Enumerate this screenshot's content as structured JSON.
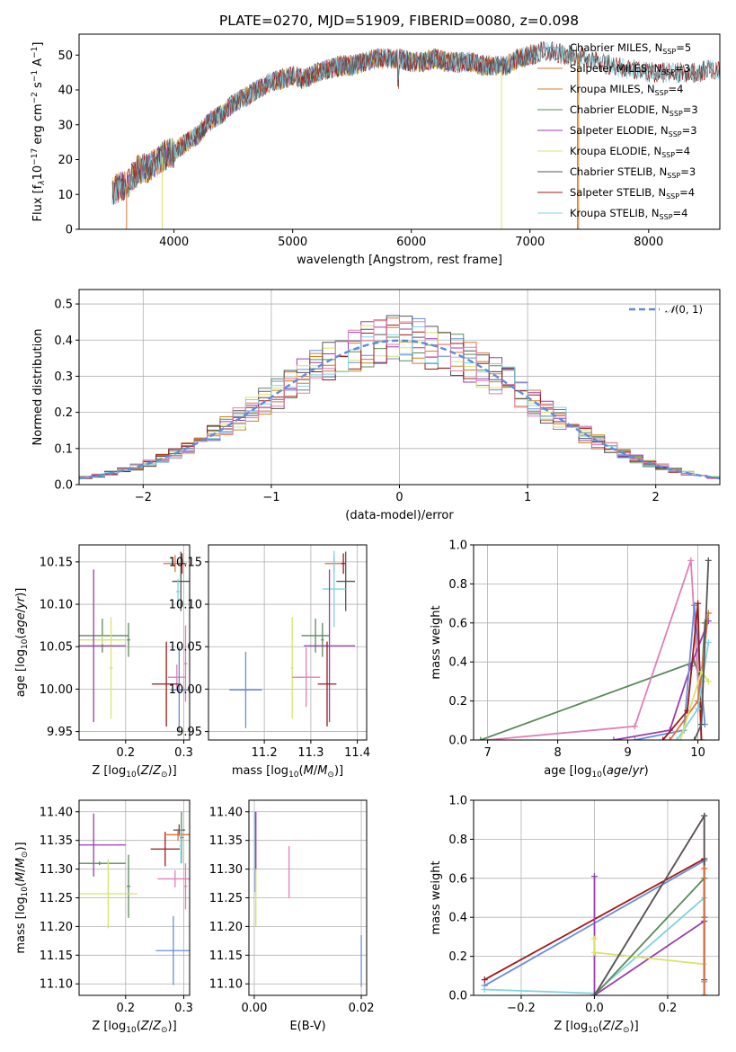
{
  "figure": {
    "title": "PLATE=0270, MJD=51909, FIBERID=0080, z=0.098"
  },
  "colors": {
    "chabrier_miles": "#6a8ed6",
    "salpeter_miles": "#e2703a",
    "kroupa_miles": "#c7851e",
    "chabrier_elodie": "#5a8a5a",
    "salpeter_elodie": "#9a3cb0",
    "kroupa_elodie": "#d9e36a",
    "chabrier_stelib": "#555555",
    "salpeter_stelib": "#a01818",
    "kroupa_stelib": "#7fd3e0",
    "pink": "#e17fb8",
    "gauss": "#5f8dd3"
  },
  "chart_data": [
    {
      "id": "spectrum",
      "type": "line",
      "xlabel": "wavelength [Angstrom, rest frame]",
      "ylabel": "Flux [f",
      "xlim": [
        3200,
        8600
      ],
      "ylim": [
        0,
        56
      ],
      "xticks": [
        4000,
        5000,
        6000,
        7000,
        8000
      ],
      "yticks": [
        0,
        10,
        20,
        30,
        40,
        50
      ],
      "grid": false,
      "legend": [
        {
          "label": "Chabrier MILES, N",
          "n": 5,
          "color": "#6a8ed6"
        },
        {
          "label": "Salpeter MILES, N",
          "n": 3,
          "color": "#e2703a"
        },
        {
          "label": "Kroupa MILES, N",
          "n": 4,
          "color": "#c7851e"
        },
        {
          "label": "Chabrier ELODIE, N",
          "n": 3,
          "color": "#5a8a5a"
        },
        {
          "label": "Salpeter ELODIE, N",
          "n": 3,
          "color": "#9a3cb0"
        },
        {
          "label": "Kroupa ELODIE, N",
          "n": 4,
          "color": "#d9e36a"
        },
        {
          "label": "Chabrier STELIB, N",
          "n": 3,
          "color": "#555555"
        },
        {
          "label": "Salpeter STELIB, N",
          "n": 4,
          "color": "#a01818"
        },
        {
          "label": "Kroupa STELIB, N",
          "n": 4,
          "color": "#7fd3e0"
        }
      ],
      "legend_sub": "SSP",
      "envelope": {
        "x": [
          3480,
          3600,
          3700,
          3800,
          3950,
          4000,
          4100,
          4200,
          4300,
          4400,
          4500,
          4600,
          4700,
          4800,
          4900,
          5000,
          5100,
          5200,
          5300,
          5400,
          5500,
          5600,
          5700,
          5800,
          5900,
          6000,
          6100,
          6200,
          6300,
          6400,
          6500,
          6600,
          6700,
          6800,
          6900,
          7000,
          7100,
          7200,
          7300,
          7400,
          7500,
          7600,
          7700,
          7800,
          7900,
          8000,
          8100,
          8200,
          8300,
          8400,
          8500,
          8600
        ],
        "y": [
          11,
          13,
          17,
          18,
          22,
          22,
          25,
          27,
          31,
          33,
          36,
          38,
          40,
          42,
          43,
          44,
          43,
          45,
          46,
          47,
          47,
          48,
          49,
          49,
          49,
          48,
          48,
          49,
          48,
          48,
          48,
          47,
          47,
          47,
          49,
          50,
          51,
          51,
          50,
          50,
          49,
          48,
          47,
          46,
          46,
          45,
          45,
          45,
          45,
          45,
          46,
          46
        ]
      },
      "lines_x": [
        3900,
        5890,
        6760,
        7400
      ]
    },
    {
      "id": "residuals",
      "type": "line",
      "xlabel": "(data-model)/error",
      "ylabel": "Normed distribution",
      "xlim": [
        -2.5,
        2.5
      ],
      "ylim": [
        0,
        0.54
      ],
      "xticks": [
        -2,
        -1,
        0,
        1,
        2
      ],
      "yticks": [
        0.0,
        0.1,
        0.2,
        0.3,
        0.4,
        0.5
      ],
      "grid": true,
      "legend": [
        {
          "label": "(0, 1)",
          "color": "#5f8dd3"
        }
      ],
      "histogram_bins": {
        "start": -2.5,
        "width": 0.1,
        "count": 50
      }
    },
    {
      "id": "age_vs_Z",
      "type": "scatter",
      "xlabel": "Z [log",
      "ylabel": "age  [log",
      "xlim": [
        0.12,
        0.31
      ],
      "ylim": [
        9.94,
        10.17
      ],
      "xticks": [
        0.2,
        0.3
      ],
      "yticks": [
        9.95,
        10.0,
        10.05,
        10.1,
        10.15
      ],
      "grid": true,
      "points": [
        {
          "x": 0.285,
          "y": 10.148,
          "xerr": 0.02,
          "yerr": 0.01,
          "color": "#e2703a"
        },
        {
          "x": 0.297,
          "y": 10.148,
          "xerr": 0.005,
          "yerr": 0.012,
          "color": "#a01818"
        },
        {
          "x": 0.295,
          "y": 10.127,
          "xerr": 0.015,
          "yerr": 0.035,
          "color": "#555555"
        },
        {
          "x": 0.29,
          "y": 10.115,
          "xerr": 0.003,
          "yerr": 0.015,
          "color": "#7fd3e0"
        },
        {
          "x": 0.16,
          "y": 10.063,
          "xerr": 0.045,
          "yerr": 0.02,
          "color": "#5a8a5a"
        },
        {
          "x": 0.205,
          "y": 10.058,
          "xerr": 0.003,
          "yerr": 0.02,
          "color": "#5a8a5a"
        },
        {
          "x": 0.16,
          "y": 10.058,
          "xerr": 0.04,
          "yerr": 0.005,
          "color": "#d9e36a"
        },
        {
          "x": 0.175,
          "y": 10.025,
          "xerr": 0.003,
          "yerr": 0.06,
          "color": "#d9e36a"
        },
        {
          "x": 0.145,
          "y": 10.051,
          "xerr": 0.055,
          "yerr": 0.09,
          "color": "#9a3cb0"
        },
        {
          "x": 0.288,
          "y": 10.014,
          "xerr": 0.015,
          "yerr": 0.015,
          "color": "#e17fb8"
        },
        {
          "x": 0.303,
          "y": 10.03,
          "xerr": 0.003,
          "yerr": 0.045,
          "color": "#e17fb8"
        },
        {
          "x": 0.27,
          "y": 10.006,
          "xerr": 0.025,
          "yerr": 0.05,
          "color": "#a01818"
        },
        {
          "x": 0.292,
          "y": 9.999,
          "xerr": 0.015,
          "yerr": 0.05,
          "color": "#6a8ed6"
        }
      ]
    },
    {
      "id": "age_vs_mass",
      "type": "scatter",
      "xlabel": "mass [log",
      "ylabel": "",
      "xlim": [
        11.08,
        11.42
      ],
      "ylim": [
        9.94,
        10.17
      ],
      "xticks": [
        11.2,
        11.3,
        11.4
      ],
      "yticks": [
        9.95,
        10.0,
        10.05,
        10.1,
        10.15
      ],
      "grid": true,
      "points": [
        {
          "x": 11.35,
          "y": 10.148,
          "xerr": 0.02,
          "yerr": 0.01,
          "color": "#e2703a"
        },
        {
          "x": 11.37,
          "y": 10.148,
          "xerr": 0.005,
          "yerr": 0.012,
          "color": "#a01818"
        },
        {
          "x": 11.375,
          "y": 10.127,
          "xerr": 0.02,
          "yerr": 0.035,
          "color": "#555555"
        },
        {
          "x": 11.35,
          "y": 10.118,
          "xerr": 0.025,
          "yerr": 0.045,
          "color": "#7fd3e0"
        },
        {
          "x": 11.31,
          "y": 10.063,
          "xerr": 0.03,
          "yerr": 0.02,
          "color": "#5a8a5a"
        },
        {
          "x": 11.325,
          "y": 10.058,
          "xerr": 0.003,
          "yerr": 0.02,
          "color": "#5a8a5a"
        },
        {
          "x": 11.26,
          "y": 10.025,
          "xerr": 0.003,
          "yerr": 0.06,
          "color": "#d9e36a"
        },
        {
          "x": 11.34,
          "y": 10.051,
          "xerr": 0.055,
          "yerr": 0.09,
          "color": "#9a3cb0"
        },
        {
          "x": 11.29,
          "y": 10.014,
          "xerr": 0.03,
          "yerr": 0.035,
          "color": "#e17fb8"
        },
        {
          "x": 11.335,
          "y": 10.006,
          "xerr": 0.02,
          "yerr": 0.05,
          "color": "#a01818"
        },
        {
          "x": 11.16,
          "y": 9.999,
          "xerr": 0.035,
          "yerr": 0.045,
          "color": "#6a8ed6"
        }
      ]
    },
    {
      "id": "massweight_vs_age",
      "type": "line",
      "xlabel": "age  [log",
      "ylabel": "mass weight",
      "xlim": [
        6.8,
        10.3
      ],
      "ylim": [
        0,
        1
      ],
      "xticks": [
        7,
        8,
        9,
        10
      ],
      "yticks": [
        0.0,
        0.2,
        0.4,
        0.6,
        0.8,
        1.0
      ],
      "grid": true,
      "series": [
        {
          "color": "#5a8a5a",
          "x": [
            6.9,
            9.95,
            10.05,
            10.1
          ],
          "y": [
            0.0,
            0.4,
            0.3,
            0.6
          ]
        },
        {
          "color": "#e17fb8",
          "x": [
            7.0,
            9.1,
            9.9,
            10.05
          ],
          "y": [
            0.0,
            0.07,
            0.92,
            0.0
          ]
        },
        {
          "color": "#9a3cb0",
          "x": [
            8.8,
            9.6,
            9.9,
            10.15
          ],
          "y": [
            0.0,
            0.05,
            0.38,
            0.61
          ]
        },
        {
          "color": "#6a8ed6",
          "x": [
            9.1,
            9.8,
            9.95,
            10.1
          ],
          "y": [
            0.0,
            0.05,
            0.69,
            0.08
          ]
        },
        {
          "color": "#a01818",
          "x": [
            9.5,
            9.85,
            10.0,
            10.05
          ],
          "y": [
            0.0,
            0.15,
            0.7,
            0.0
          ]
        },
        {
          "color": "#e2703a",
          "x": [
            9.6,
            10.0,
            10.15
          ],
          "y": [
            0.0,
            0.2,
            0.65
          ]
        },
        {
          "color": "#7fd3e0",
          "x": [
            9.7,
            10.0,
            10.15
          ],
          "y": [
            0.0,
            0.16,
            0.5
          ]
        },
        {
          "color": "#d9e36a",
          "x": [
            9.75,
            10.05,
            10.15
          ],
          "y": [
            0.0,
            0.35,
            0.3
          ]
        },
        {
          "color": "#555555",
          "x": [
            9.95,
            10.05,
            10.15
          ],
          "y": [
            0.0,
            0.08,
            0.92
          ]
        }
      ]
    },
    {
      "id": "mass_vs_Z",
      "type": "scatter",
      "xlabel": "Z [log",
      "ylabel": "mass [log",
      "xlim": [
        0.12,
        0.31
      ],
      "ylim": [
        11.08,
        11.42
      ],
      "xticks": [
        0.1,
        0.2,
        0.3
      ],
      "yticks": [
        11.1,
        11.15,
        11.2,
        11.25,
        11.3,
        11.35,
        11.4
      ],
      "grid": true,
      "points": [
        {
          "x": 0.292,
          "y": 11.368,
          "xerr": 0.01,
          "yerr": 0.01,
          "color": "#555555"
        },
        {
          "x": 0.29,
          "y": 11.36,
          "xerr": 0.02,
          "yerr": 0.01,
          "color": "#e2703a"
        },
        {
          "x": 0.296,
          "y": 11.355,
          "xerr": 0.003,
          "yerr": 0.045,
          "color": "#5a8a5a"
        },
        {
          "x": 0.145,
          "y": 11.342,
          "xerr": 0.055,
          "yerr": 0.055,
          "color": "#9a3cb0"
        },
        {
          "x": 0.268,
          "y": 11.335,
          "xerr": 0.025,
          "yerr": 0.03,
          "color": "#a01818"
        },
        {
          "x": 0.295,
          "y": 11.34,
          "xerr": 0.003,
          "yerr": 0.03,
          "color": "#7fd3e0"
        },
        {
          "x": 0.155,
          "y": 11.31,
          "xerr": 0.045,
          "yerr": 0.003,
          "color": "#5a8a5a"
        },
        {
          "x": 0.205,
          "y": 11.27,
          "xerr": 0.003,
          "yerr": 0.055,
          "color": "#5a8a5a"
        },
        {
          "x": 0.17,
          "y": 11.257,
          "xerr": 0.05,
          "yerr": 0.06,
          "color": "#d9e36a"
        },
        {
          "x": 0.285,
          "y": 11.283,
          "xerr": 0.03,
          "yerr": 0.015,
          "color": "#e17fb8"
        },
        {
          "x": 0.303,
          "y": 11.27,
          "xerr": 0.003,
          "yerr": 0.04,
          "color": "#e17fb8"
        },
        {
          "x": 0.282,
          "y": 11.158,
          "xerr": 0.03,
          "yerr": 0.06,
          "color": "#6a8ed6"
        }
      ]
    },
    {
      "id": "mass_vs_ebv",
      "type": "scatter",
      "xlabel": "E(B-V)",
      "ylabel": "",
      "xlim": [
        -0.001,
        0.021
      ],
      "ylim": [
        11.08,
        11.42
      ],
      "xticks": [
        0.0,
        0.02
      ],
      "yticks": [
        11.1,
        11.15,
        11.2,
        11.25,
        11.3,
        11.35,
        11.4
      ],
      "grid": true,
      "points": [
        {
          "x": 0.0002,
          "y": 11.33,
          "xerr": 0,
          "yerr": 0.07,
          "color": "#6a8ed6"
        },
        {
          "x": 0.0003,
          "y": 11.27,
          "xerr": 0,
          "yerr": 0.07,
          "color": "#d9e36a"
        },
        {
          "x": 0.0003,
          "y": 11.35,
          "xerr": 0,
          "yerr": 0.05,
          "color": "#9a3cb0"
        },
        {
          "x": 0.0065,
          "y": 11.295,
          "xerr": 0,
          "yerr": 0.045,
          "color": "#e17fb8"
        },
        {
          "x": 0.02,
          "y": 11.14,
          "xerr": 0,
          "yerr": 0.045,
          "color": "#6a8ed6"
        }
      ]
    },
    {
      "id": "massweight_vs_Z",
      "type": "line",
      "xlabel": "Z [log",
      "ylabel": "mass weight",
      "xlim": [
        -0.33,
        0.34
      ],
      "ylim": [
        0,
        1
      ],
      "xticks": [
        -0.2,
        0.0,
        0.2
      ],
      "yticks": [
        0.0,
        0.2,
        0.4,
        0.6,
        0.8,
        1.0
      ],
      "grid": true,
      "series": [
        {
          "color": "#6a8ed6",
          "x": [
            -0.3,
            0.3,
            0.3
          ],
          "y": [
            0.05,
            0.69,
            0.0
          ]
        },
        {
          "color": "#a01818",
          "x": [
            -0.3,
            0.3,
            0.3
          ],
          "y": [
            0.08,
            0.7,
            0.0
          ]
        },
        {
          "color": "#7fd3e0",
          "x": [
            -0.3,
            0.0,
            0.3,
            0.3
          ],
          "y": [
            0.03,
            0.01,
            0.5,
            0.0
          ]
        },
        {
          "color": "#9a3cb0",
          "x": [
            0.0,
            0.0,
            0.3
          ],
          "y": [
            0.61,
            0.0,
            0.38
          ]
        },
        {
          "color": "#d9e36a",
          "x": [
            0.0,
            0.0,
            0.3
          ],
          "y": [
            0.29,
            0.22,
            0.16
          ]
        },
        {
          "color": "#5a8a5a",
          "x": [
            0.0,
            0.3,
            0.3
          ],
          "y": [
            0.0,
            0.6,
            0.4
          ]
        },
        {
          "color": "#e17fb8",
          "x": [
            0.0,
            0.3,
            0.3
          ],
          "y": [
            0.0,
            0.92,
            0.07
          ]
        },
        {
          "color": "#555555",
          "x": [
            0.0,
            0.3,
            0.3
          ],
          "y": [
            0.0,
            0.92,
            0.08
          ]
        },
        {
          "color": "#e2703a",
          "x": [
            0.3,
            0.3
          ],
          "y": [
            0.0,
            0.65
          ]
        }
      ]
    }
  ]
}
